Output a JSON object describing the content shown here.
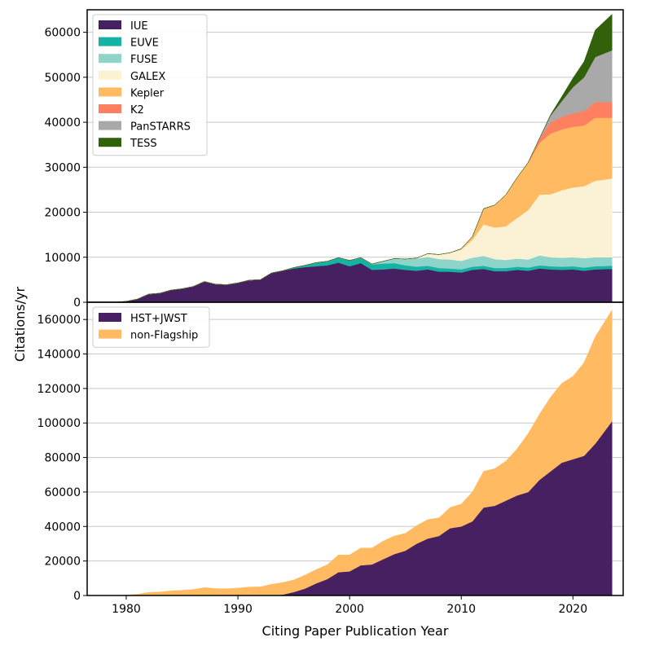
{
  "figure": {
    "ylabel": "Citations/yr",
    "xlabel": "Citing Paper Publication Year"
  },
  "chart_data": [
    {
      "type": "area",
      "stacked": true,
      "title": "",
      "xlabel": "",
      "ylabel": "Citations/yr",
      "xlim": [
        1976.5,
        2024.5
      ],
      "ylim": [
        0,
        65000
      ],
      "xticks": [
        1980,
        1990,
        2000,
        2010,
        2020
      ],
      "yticks": [
        0,
        10000,
        20000,
        30000,
        40000,
        50000,
        60000
      ],
      "grid": "horizontal",
      "legend_position": "top-left",
      "x": [
        1979,
        1980,
        1981,
        1982,
        1983,
        1984,
        1985,
        1986,
        1987,
        1988,
        1989,
        1990,
        1991,
        1992,
        1993,
        1994,
        1995,
        1996,
        1997,
        1998,
        1999,
        2000,
        2001,
        2002,
        2003,
        2004,
        2005,
        2006,
        2007,
        2008,
        2009,
        2010,
        2011,
        2012,
        2013,
        2014,
        2015,
        2016,
        2017,
        2018,
        2019,
        2020,
        2021,
        2022,
        2023.5
      ],
      "series": [
        {
          "name": "IUE",
          "color": "#472061",
          "values": [
            0,
            200,
            700,
            1800,
            2000,
            2700,
            3000,
            3500,
            4600,
            4000,
            3900,
            4300,
            4900,
            5000,
            6500,
            7000,
            7500,
            7800,
            8000,
            8200,
            8800,
            8000,
            8700,
            7200,
            7300,
            7500,
            7200,
            7000,
            7300,
            6800,
            6800,
            6600,
            7200,
            7400,
            6900,
            6900,
            7200,
            7000,
            7500,
            7300,
            7200,
            7300,
            7000,
            7300,
            7400
          ]
        },
        {
          "name": "EUVE",
          "color": "#16b3a5",
          "values": [
            0,
            0,
            0,
            0,
            0,
            0,
            0,
            0,
            0,
            0,
            0,
            0,
            0,
            0,
            0,
            0,
            200,
            400,
            800,
            900,
            1100,
            1300,
            1200,
            1200,
            1300,
            1200,
            1000,
            900,
            800,
            800,
            700,
            700,
            700,
            700,
            700,
            700,
            700,
            700,
            700,
            700,
            700,
            700,
            700,
            700,
            700
          ]
        },
        {
          "name": "FUSE",
          "color": "#8dd4ca",
          "values": [
            0,
            0,
            0,
            0,
            0,
            0,
            0,
            0,
            0,
            0,
            0,
            0,
            0,
            0,
            0,
            0,
            0,
            0,
            0,
            0,
            0,
            0,
            0,
            100,
            500,
            1000,
            1400,
            1800,
            2000,
            2000,
            2000,
            1900,
            2000,
            2200,
            2000,
            1800,
            1800,
            1800,
            2200,
            2000,
            2000,
            2000,
            2100,
            2000,
            1900
          ]
        },
        {
          "name": "GALEX",
          "color": "#fbf2d6",
          "values": [
            0,
            0,
            0,
            0,
            0,
            0,
            0,
            0,
            0,
            0,
            0,
            0,
            0,
            0,
            0,
            0,
            0,
            0,
            0,
            0,
            0,
            0,
            0,
            0,
            0,
            0,
            0,
            100,
            700,
            1000,
            1500,
            2500,
            4000,
            7000,
            7000,
            7500,
            9000,
            11000,
            13500,
            14000,
            15000,
            15500,
            16000,
            17000,
            17500
          ]
        },
        {
          "name": "Kepler",
          "color": "#ffba62",
          "values": [
            0,
            0,
            0,
            0,
            0,
            0,
            0,
            0,
            0,
            0,
            0,
            0,
            0,
            0,
            0,
            0,
            0,
            0,
            0,
            0,
            0,
            0,
            0,
            0,
            0,
            0,
            0,
            0,
            0,
            0,
            0,
            200,
            700,
            3500,
            5000,
            7000,
            9000,
            10500,
            11500,
            13500,
            13500,
            13500,
            13500,
            14000,
            13500
          ]
        },
        {
          "name": "K2",
          "color": "#ff8060",
          "values": [
            0,
            0,
            0,
            0,
            0,
            0,
            0,
            0,
            0,
            0,
            0,
            0,
            0,
            0,
            0,
            0,
            0,
            0,
            0,
            0,
            0,
            0,
            0,
            0,
            0,
            0,
            0,
            0,
            0,
            0,
            0,
            0,
            0,
            0,
            0,
            0,
            0,
            100,
            1000,
            2500,
            2800,
            3000,
            3200,
            3500,
            3500
          ]
        },
        {
          "name": "PanSTARRS",
          "color": "#a9a9a9",
          "values": [
            0,
            0,
            0,
            0,
            0,
            0,
            0,
            0,
            0,
            0,
            0,
            0,
            0,
            0,
            0,
            0,
            0,
            0,
            0,
            0,
            0,
            0,
            0,
            0,
            0,
            0,
            0,
            0,
            0,
            0,
            0,
            0,
            0,
            0,
            0,
            0,
            0,
            0,
            0,
            1500,
            3500,
            5800,
            7500,
            10000,
            11500
          ]
        },
        {
          "name": "TESS",
          "color": "#31610b",
          "values": [
            0,
            0,
            0,
            0,
            0,
            0,
            0,
            0,
            0,
            0,
            0,
            0,
            0,
            0,
            0,
            0,
            0,
            0,
            0,
            0,
            0,
            0,
            0,
            0,
            0,
            0,
            0,
            0,
            0,
            0,
            0,
            0,
            0,
            0,
            0,
            0,
            0,
            0,
            0,
            200,
            1000,
            2000,
            3500,
            6000,
            8000
          ]
        }
      ]
    },
    {
      "type": "area",
      "stacked": true,
      "title": "",
      "xlabel": "Citing Paper Publication Year",
      "ylabel": "Citations/yr",
      "xlim": [
        1976.5,
        2024.5
      ],
      "ylim": [
        0,
        170000
      ],
      "xticks": [
        1980,
        1990,
        2000,
        2010,
        2020
      ],
      "yticks": [
        0,
        20000,
        40000,
        60000,
        80000,
        100000,
        120000,
        140000,
        160000
      ],
      "grid": "horizontal",
      "legend_position": "top-left",
      "x": [
        1979,
        1980,
        1981,
        1982,
        1983,
        1984,
        1985,
        1986,
        1987,
        1988,
        1989,
        1990,
        1991,
        1992,
        1993,
        1994,
        1995,
        1996,
        1997,
        1998,
        1999,
        2000,
        2001,
        2002,
        2003,
        2004,
        2005,
        2006,
        2007,
        2008,
        2009,
        2010,
        2011,
        2012,
        2013,
        2014,
        2015,
        2016,
        2017,
        2018,
        2019,
        2020,
        2021,
        2022,
        2023.5
      ],
      "series": [
        {
          "name": "HST+JWST",
          "color": "#472061",
          "values": [
            0,
            0,
            0,
            0,
            0,
            0,
            0,
            0,
            0,
            0,
            0,
            0,
            0,
            0,
            0,
            500,
            2000,
            4000,
            7000,
            9500,
            13500,
            14000,
            17500,
            18000,
            21000,
            24000,
            26000,
            30000,
            33000,
            34500,
            39000,
            40000,
            43000,
            51000,
            52000,
            55000,
            58000,
            60000,
            67000,
            72000,
            77000,
            79000,
            81000,
            88000,
            101000
          ]
        },
        {
          "name": "non-Flagship",
          "color": "#ffba62",
          "values": [
            0,
            200,
            700,
            1800,
            2000,
            2700,
            3000,
            3500,
            4600,
            4000,
            3900,
            4300,
            4900,
            5000,
            6500,
            7000,
            7000,
            7800,
            8000,
            8300,
            10000,
            9500,
            10000,
            9500,
            10500,
            10500,
            10000,
            10500,
            11000,
            10500,
            12000,
            13000,
            17000,
            21000,
            21500,
            23000,
            27000,
            34000,
            38000,
            43000,
            46000,
            48000,
            54000,
            62000,
            64500
          ]
        }
      ]
    }
  ]
}
